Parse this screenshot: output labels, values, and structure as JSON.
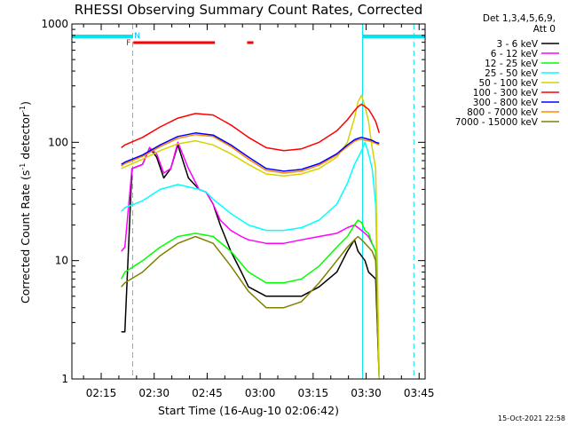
{
  "chart_data": {
    "type": "line",
    "title": "RHESSI Observing Summary Count Rates, Corrected",
    "xlabel": "Start Time (16-Aug-10 02:06:42)",
    "ylabel_main": "Corrected Count Rate (s",
    "ylabel_sup1": "-1",
    "ylabel_mid": " detector",
    "ylabel_sup2": "-1",
    "ylabel_end": ")",
    "y_scale": "log",
    "ylim": [
      1,
      1000
    ],
    "xlim_minutes": [
      0,
      100
    ],
    "x_ticks": [
      {
        "label": "02:15",
        "minutes": 8.3
      },
      {
        "label": "02:30",
        "minutes": 23.3
      },
      {
        "label": "02:45",
        "minutes": 38.3
      },
      {
        "label": "03:00",
        "minutes": 53.3
      },
      {
        "label": "03:15",
        "minutes": 68.3
      },
      {
        "label": "03:30",
        "minutes": 83.3
      },
      {
        "label": "03:45",
        "minutes": 98.3
      }
    ],
    "y_ticks": [
      {
        "label": "1",
        "value": 1
      },
      {
        "label": "10",
        "value": 10
      },
      {
        "label": "100",
        "value": 100
      },
      {
        "label": "1000",
        "value": 1000
      }
    ],
    "legend_header": [
      "Det 1,3,4,5,6,9,",
      "Att 0"
    ],
    "series": [
      {
        "name": "3 - 6 keV",
        "color": "#000000",
        "x": [
          14,
          15,
          17,
          20,
          22,
          24,
          26,
          28,
          30,
          33,
          36,
          38,
          40,
          42,
          45,
          48,
          50,
          55,
          60,
          65,
          70,
          75,
          78,
          80,
          81,
          83,
          84,
          86,
          87
        ],
        "y": [
          2.5,
          2.5,
          60,
          65,
          90,
          75,
          50,
          60,
          95,
          50,
          40,
          38,
          30,
          20,
          12,
          8,
          6,
          5,
          5,
          5,
          6,
          8,
          12,
          15,
          12,
          10,
          8,
          7,
          1
        ]
      },
      {
        "name": "6 - 12 keV",
        "color": "#ff00ff",
        "x": [
          14,
          15,
          17,
          20,
          22,
          24,
          26,
          28,
          30,
          33,
          36,
          38,
          40,
          42,
          45,
          48,
          50,
          55,
          60,
          65,
          70,
          75,
          78,
          80,
          81,
          83,
          84,
          86,
          87
        ],
        "y": [
          12,
          13,
          60,
          65,
          90,
          80,
          55,
          60,
          100,
          60,
          40,
          38,
          30,
          22,
          18,
          16,
          15,
          14,
          14,
          15,
          16,
          17,
          19,
          20,
          19,
          17,
          16,
          12,
          1
        ]
      },
      {
        "name": "12 - 25 keV",
        "color": "#00ff00",
        "x": [
          14,
          15,
          20,
          25,
          30,
          35,
          40,
          45,
          50,
          55,
          60,
          65,
          70,
          75,
          78,
          80,
          81,
          82,
          83,
          84,
          85,
          86,
          87
        ],
        "y": [
          7,
          8,
          10,
          13,
          16,
          17,
          16,
          12,
          8,
          6.5,
          6.5,
          7,
          9,
          13,
          16,
          20,
          22,
          21,
          18,
          17,
          14,
          12,
          1
        ]
      },
      {
        "name": "25 - 50 keV",
        "color": "#00ffff",
        "x": [
          14,
          15,
          20,
          25,
          30,
          33,
          36,
          38,
          40,
          45,
          50,
          55,
          60,
          65,
          70,
          75,
          78,
          80,
          82,
          83,
          84,
          85,
          86,
          87
        ],
        "y": [
          26,
          28,
          32,
          40,
          44,
          42,
          40,
          38,
          33,
          25,
          20,
          18,
          18,
          19,
          22,
          30,
          45,
          65,
          85,
          100,
          80,
          60,
          30,
          1
        ]
      },
      {
        "name": "50 - 100 keV",
        "color": "#d4d400",
        "x": [
          14,
          15,
          20,
          25,
          30,
          35,
          40,
          45,
          50,
          55,
          60,
          65,
          70,
          75,
          78,
          80,
          81,
          82,
          83,
          84,
          85,
          86,
          87
        ],
        "y": [
          60,
          62,
          72,
          85,
          97,
          103,
          95,
          80,
          65,
          54,
          52,
          54,
          60,
          75,
          100,
          160,
          220,
          250,
          200,
          150,
          90,
          60,
          1
        ]
      },
      {
        "name": "100 - 300 keV",
        "color": "#ff0000",
        "x": [
          14,
          15,
          20,
          25,
          30,
          35,
          40,
          45,
          50,
          55,
          60,
          65,
          70,
          75,
          78,
          80,
          81,
          82,
          83,
          84,
          85,
          86,
          87
        ],
        "y": [
          90,
          95,
          110,
          135,
          160,
          175,
          170,
          140,
          110,
          90,
          85,
          88,
          100,
          125,
          155,
          185,
          200,
          210,
          200,
          190,
          170,
          150,
          120
        ]
      },
      {
        "name": "300 - 800 keV",
        "color": "#0000ff",
        "x": [
          14,
          15,
          20,
          25,
          30,
          35,
          40,
          45,
          50,
          55,
          60,
          65,
          70,
          75,
          78,
          80,
          81,
          82,
          83,
          84,
          85,
          86,
          87
        ],
        "y": [
          65,
          68,
          78,
          95,
          112,
          120,
          115,
          95,
          75,
          60,
          57,
          59,
          66,
          80,
          95,
          105,
          108,
          110,
          108,
          106,
          104,
          100,
          98
        ]
      },
      {
        "name": "800 - 7000 keV",
        "color": "#ff8800",
        "x": [
          14,
          15,
          20,
          25,
          30,
          35,
          40,
          45,
          50,
          55,
          60,
          65,
          70,
          75,
          78,
          80,
          81,
          82,
          83,
          84,
          85,
          86,
          87
        ],
        "y": [
          63,
          66,
          76,
          92,
          108,
          116,
          112,
          92,
          72,
          58,
          55,
          57,
          64,
          78,
          92,
          102,
          105,
          106,
          104,
          103,
          101,
          98,
          95
        ]
      },
      {
        "name": "7000 - 15000 keV",
        "color": "#808000",
        "x": [
          14,
          15,
          20,
          25,
          30,
          35,
          40,
          45,
          50,
          55,
          60,
          65,
          70,
          75,
          78,
          80,
          81,
          82,
          83,
          84,
          85,
          86,
          87
        ],
        "y": [
          6,
          6.5,
          8,
          11,
          14,
          16,
          14,
          9,
          5.5,
          4,
          4,
          4.5,
          6.5,
          10,
          13,
          15,
          16,
          15,
          14,
          13,
          12,
          10,
          1
        ]
      }
    ],
    "night_periods": [
      {
        "label": "",
        "start": 0,
        "end": 17.2
      },
      {
        "label": "",
        "start": 82.3,
        "end": 100
      }
    ],
    "vertical_markers": [
      {
        "kind": "solid",
        "minutes": 0
      },
      {
        "kind": "dashed",
        "minutes": 17.2
      },
      {
        "kind": "solid",
        "minutes": 82.3
      },
      {
        "kind": "dashed",
        "minutes": 96.8
      }
    ],
    "flags": [
      {
        "label": "F",
        "color": "#ff0000",
        "start": 17.4,
        "end": 40.5
      },
      {
        "label": "",
        "color": "#ff0000",
        "start": 49.6,
        "end": 51.4
      }
    ],
    "flag_labels": [
      {
        "label": "N",
        "color": "#00bfff",
        "minutes": 18.5
      }
    ]
  },
  "footer": {
    "timestamp": "15-Oct-2021 22:58"
  }
}
